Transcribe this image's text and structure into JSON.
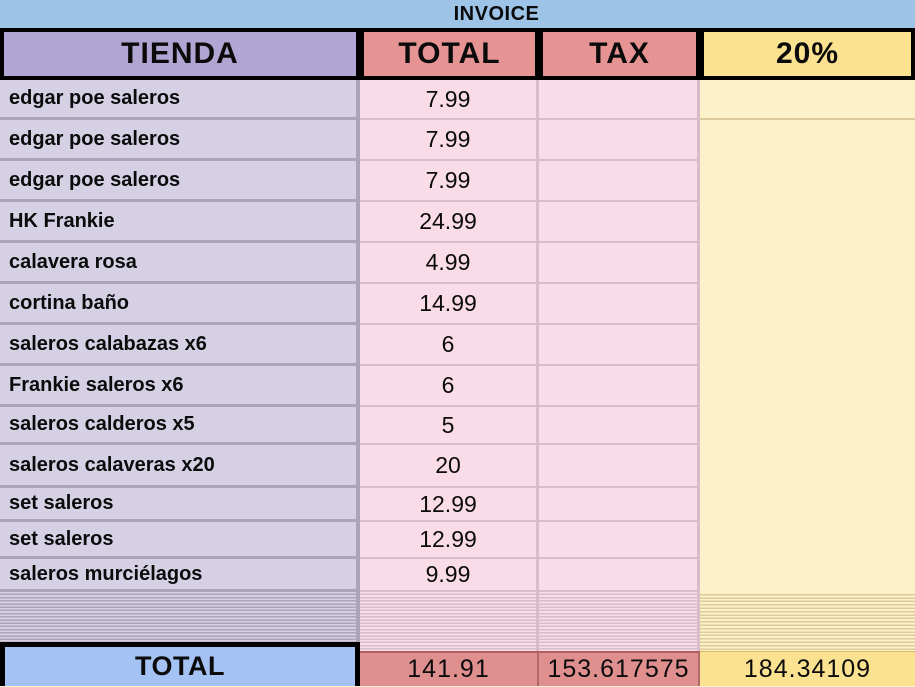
{
  "title": "INVOICE",
  "columns": {
    "tienda": "TIENDA",
    "total": "TOTAL",
    "tax": "TAX",
    "pct": "20%"
  },
  "rows": [
    {
      "name": "edgar poe saleros",
      "total": "7.99"
    },
    {
      "name": "edgar poe saleros",
      "total": "7.99"
    },
    {
      "name": "edgar poe saleros",
      "total": "7.99"
    },
    {
      "name": "HK Frankie",
      "total": "24.99"
    },
    {
      "name": "calavera rosa",
      "total": "4.99"
    },
    {
      "name": "cortina baño",
      "total": "14.99"
    },
    {
      "name": "saleros calabazas x6",
      "total": "6"
    },
    {
      "name": "Frankie saleros x6",
      "total": "6"
    },
    {
      "name": "saleros calderos x5",
      "total": "5"
    },
    {
      "name": "saleros calaveras x20",
      "total": "20"
    },
    {
      "name": "set saleros",
      "total": "12.99"
    },
    {
      "name": "set saleros",
      "total": "12.99"
    },
    {
      "name": "saleros murciélagos",
      "total": "9.99"
    }
  ],
  "footer": {
    "label": "TOTAL",
    "total": "141.91",
    "tax": "153.617575",
    "pct": "184.34109"
  },
  "colors": {
    "title_blue": "#9DC3E6",
    "header_purple": "#B1A5D3",
    "header_salmon": "#E59393",
    "header_yellow": "#FBE291",
    "cell_lavender": "#D6D0E4",
    "cell_pink": "#FADCE8",
    "cell_yellow": "#FDF1C9",
    "grid_lavender": "#ABA5BA",
    "grid_pink": "#D9BCCA",
    "grid_yellow": "#DECB9D",
    "footer_blue": "#A4C2F4",
    "footer_salmon": "#E08F8F",
    "footer_yellow": "#FBE291"
  }
}
